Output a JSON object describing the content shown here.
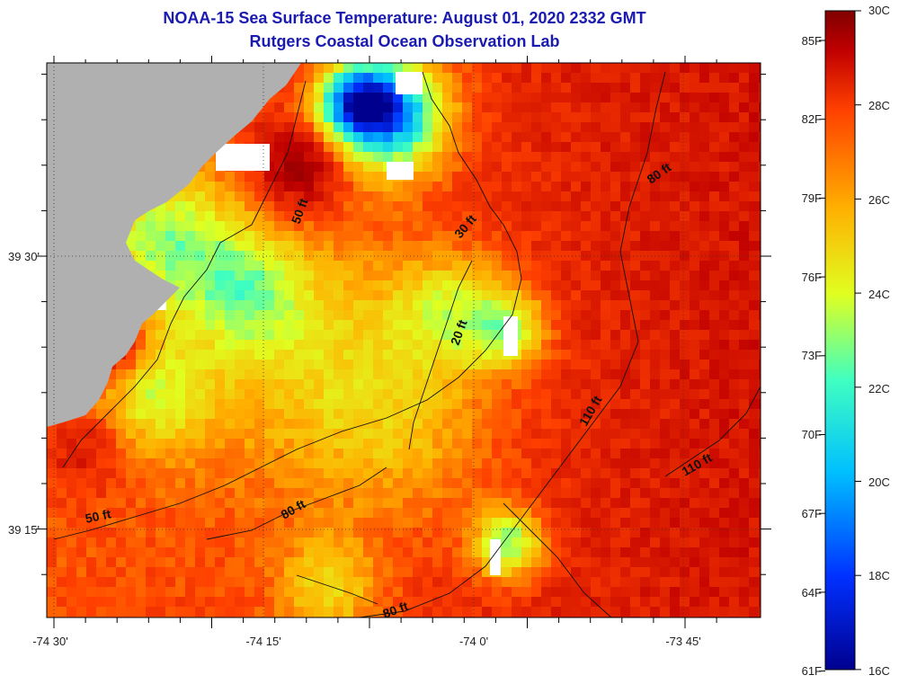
{
  "title": {
    "line1": "NOAA-15 Sea Surface Temperature:  August 01, 2020 2332 GMT",
    "line2": "Rutgers Coastal Ocean Observation Lab"
  },
  "map": {
    "x_ticks": [
      "-74 30'",
      "-74 15'",
      "-74 0'",
      "-73 45'"
    ],
    "y_ticks": [
      "39 30'",
      "39 15'"
    ],
    "land_color": "#b0b0b0",
    "depth_labels": [
      "50 ft",
      "30 ft",
      "80 ft",
      "20 ft",
      "110 ft",
      "110 ft",
      "50 ft",
      "80 ft",
      "80 ft"
    ]
  },
  "colorbar": {
    "celsius": [
      "30C",
      "28C",
      "26C",
      "24C",
      "22C",
      "20C",
      "18C",
      "16C"
    ],
    "fahrenheit": [
      "85F",
      "82F",
      "79F",
      "76F",
      "73F",
      "70F",
      "67F",
      "64F",
      "61F"
    ],
    "colors": [
      "#00008f",
      "#0030ff",
      "#00c0ff",
      "#40ffc0",
      "#e0ff20",
      "#ffb000",
      "#ff4000",
      "#c00000",
      "#800000"
    ]
  }
}
